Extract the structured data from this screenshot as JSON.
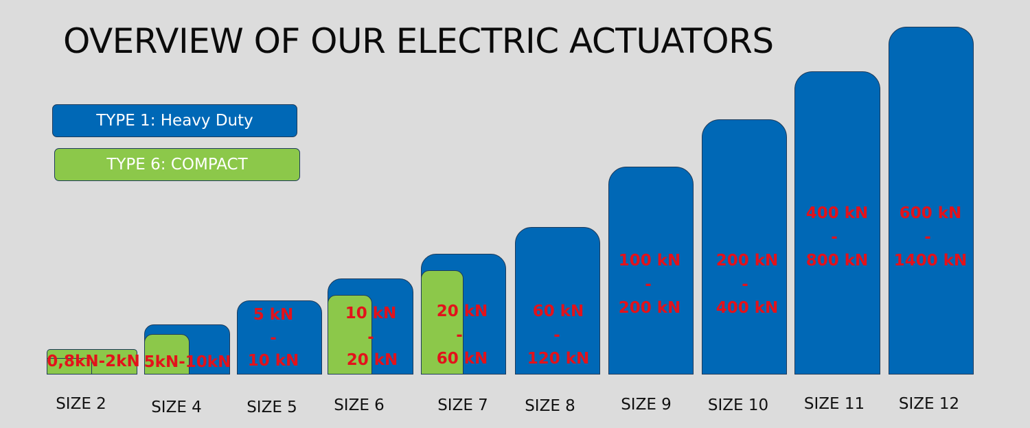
{
  "title": "OVERVIEW OF OUR ELECTRIC ACTUATORS",
  "legend": {
    "type1": "TYPE 1: Heavy Duty",
    "type6": "TYPE 6: COMPACT"
  },
  "colors": {
    "type1": "#0068b6",
    "type6": "#8cc84a",
    "force_text": "#e3121b"
  },
  "sizes": [
    {
      "label": "SIZE 2",
      "force": [
        "0,8kN-2kN"
      ]
    },
    {
      "label": "SIZE 4",
      "force": [
        "5kN-10kN"
      ]
    },
    {
      "label": "SIZE 5",
      "force": [
        "5 kN",
        "-",
        "10 kN"
      ]
    },
    {
      "label": "SIZE 6",
      "force": [
        "10 kN",
        "-",
        "20 kN"
      ]
    },
    {
      "label": "SIZE 7",
      "force": [
        "20 kN",
        "-",
        "60 kN"
      ]
    },
    {
      "label": "SIZE 8",
      "force": [
        "60 kN",
        "-",
        "120 kN"
      ]
    },
    {
      "label": "SIZE 9",
      "force": [
        "100 kN",
        "-",
        "200 kN"
      ]
    },
    {
      "label": "SIZE 10",
      "force": [
        "200 kN",
        "-",
        "400 kN"
      ]
    },
    {
      "label": "SIZE 11",
      "force": [
        "400 kN",
        "-",
        "800 kN"
      ]
    },
    {
      "label": "SIZE 12",
      "force": [
        "600 kN",
        "-",
        "1400 kN"
      ]
    }
  ]
}
